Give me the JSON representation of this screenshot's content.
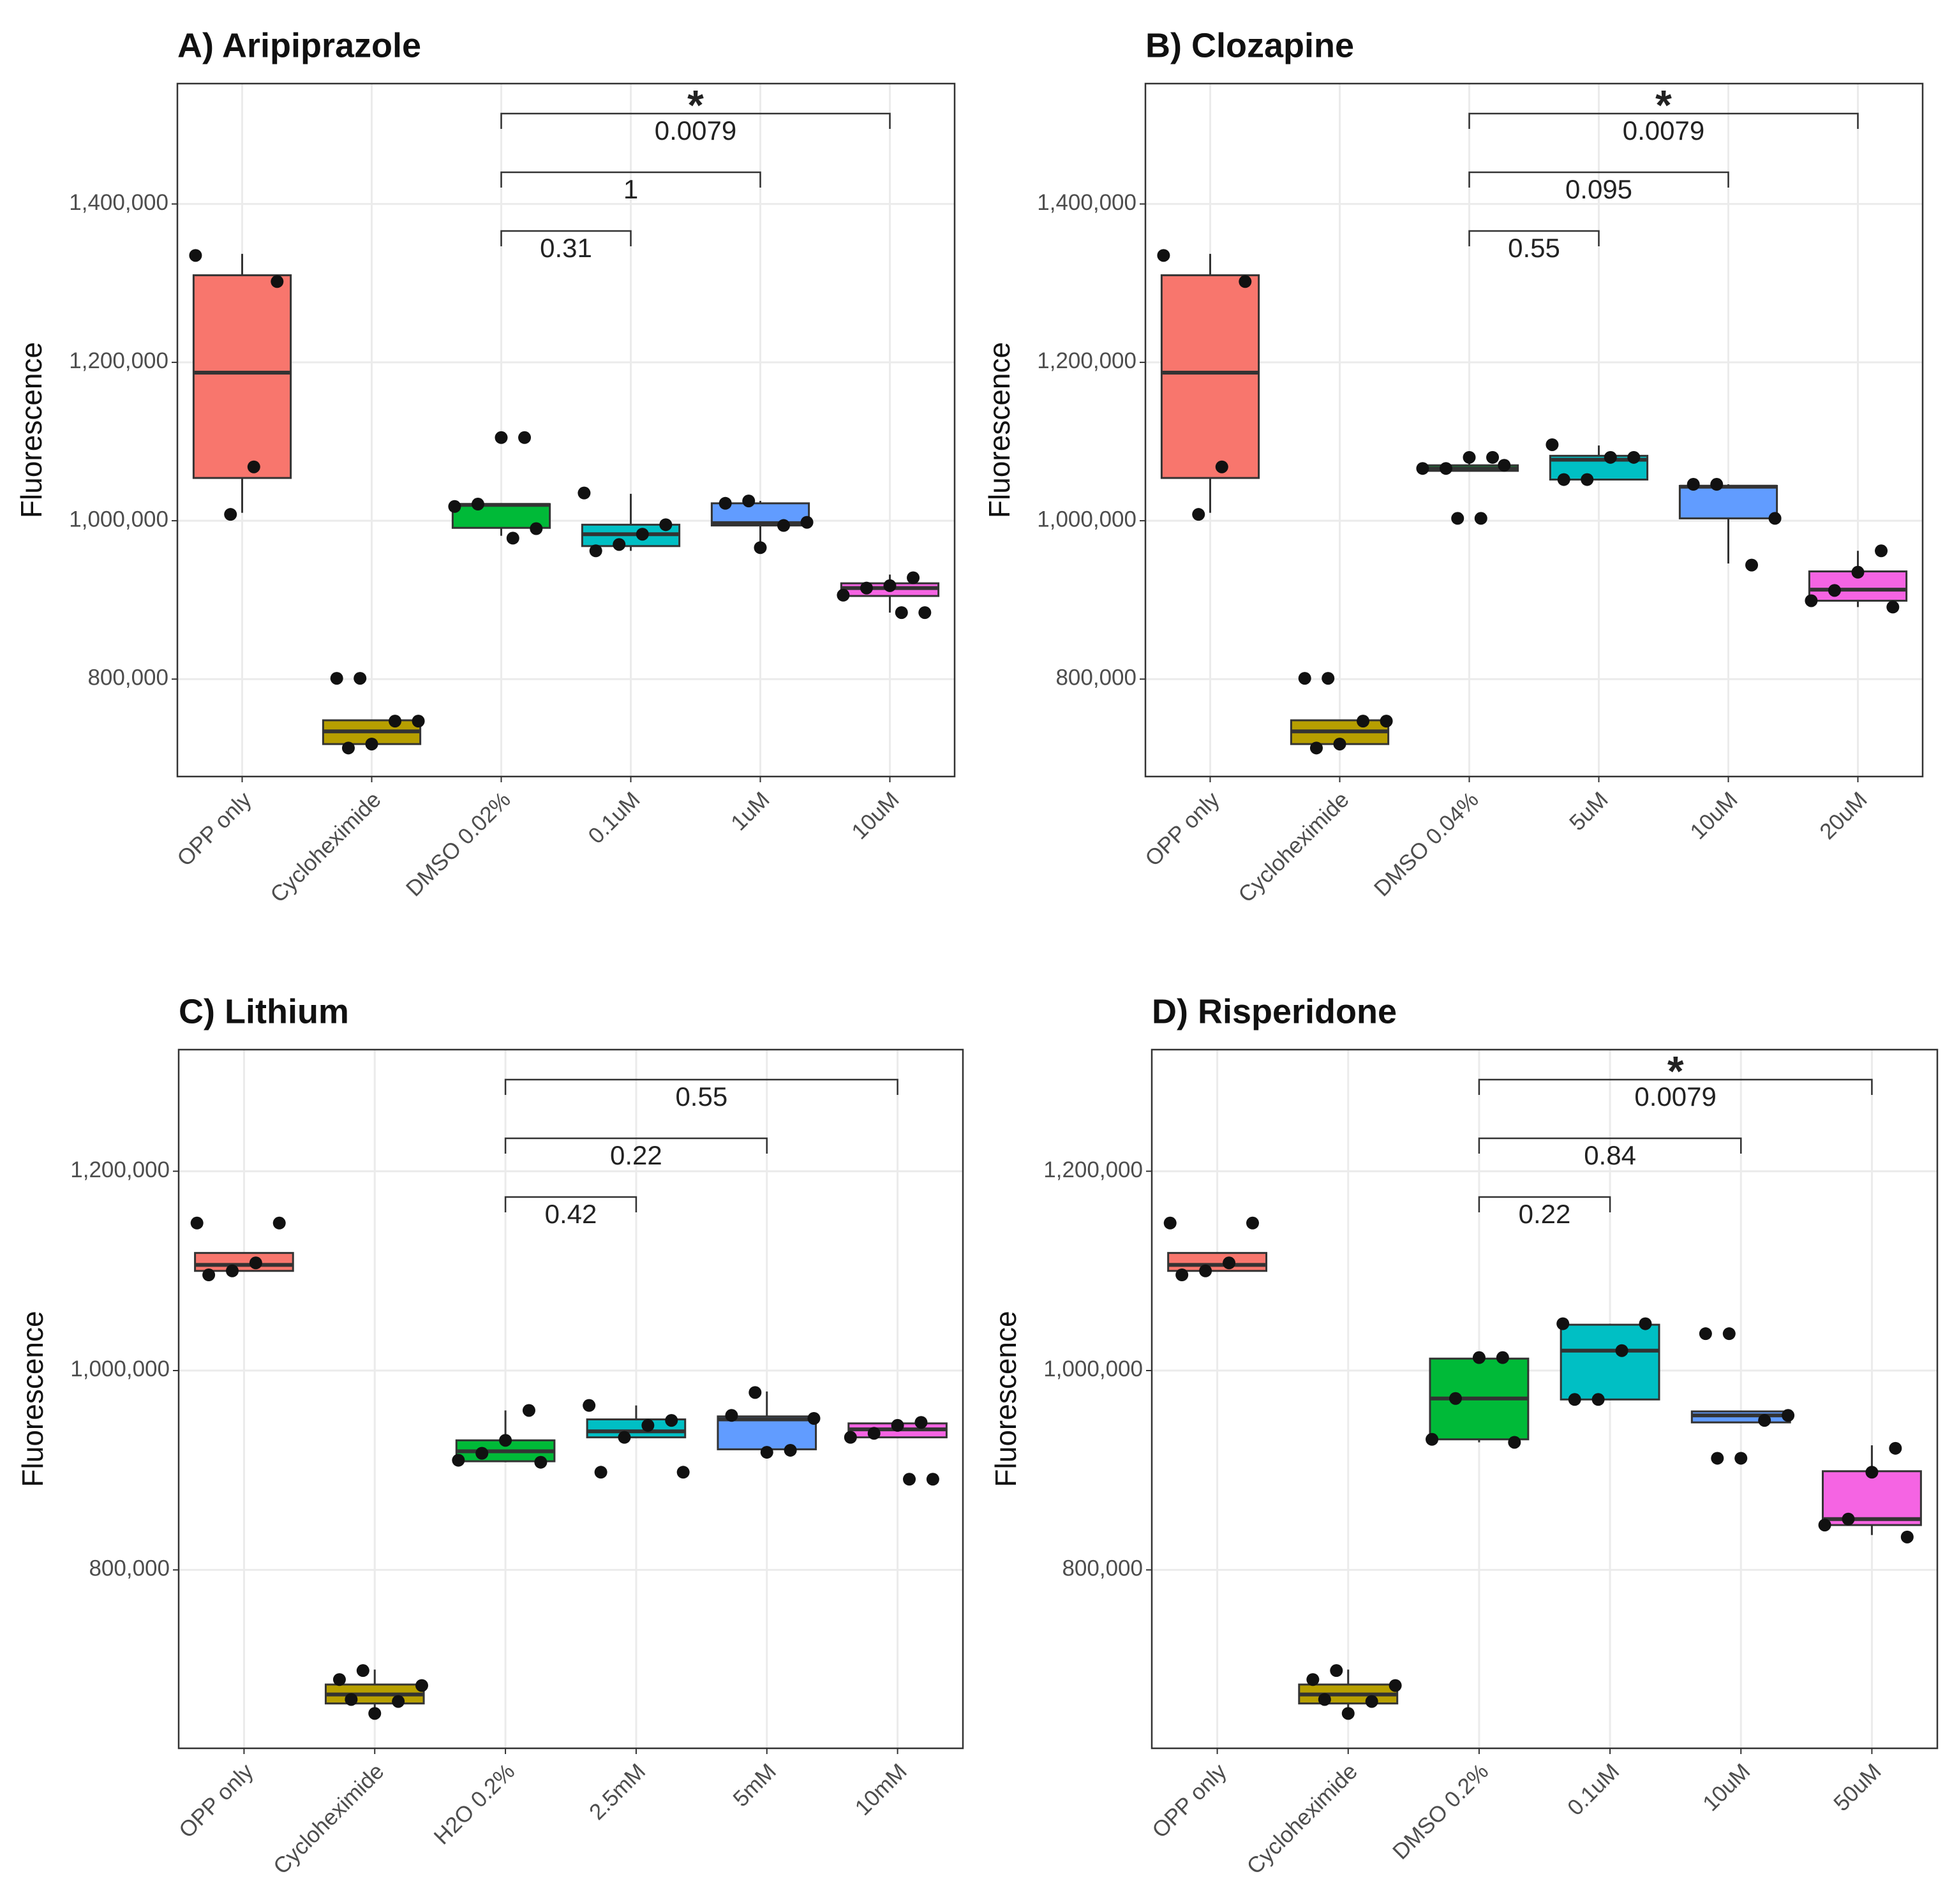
{
  "chart_data": [
    {
      "type": "box",
      "title": "A) Aripiprazole",
      "ylabel": "Fluorescence",
      "categories": [
        "OPP only",
        "Cycloheximide",
        "DMSO 0.02%",
        "0.1uM",
        "1uM",
        "10uM"
      ],
      "colors": [
        "#F8766D",
        "#B79F00",
        "#00BA38",
        "#00BFC4",
        "#619CFF",
        "#F564E3"
      ],
      "boxes": [
        {
          "low": 1010000,
          "q1": 1054000,
          "median": 1187000,
          "q3": 1310000,
          "high": 1337000
        },
        {
          "low": 710000,
          "q1": 718000,
          "median": 734000,
          "q3": 748000,
          "high": 748000
        },
        {
          "low": 981000,
          "q1": 991000,
          "median": 1020000,
          "q3": 1021000,
          "high": 1021000
        },
        {
          "low": 962000,
          "q1": 968000,
          "median": 983000,
          "q3": 995000,
          "high": 1034000
        },
        {
          "low": 967000,
          "q1": 994000,
          "median": 997000,
          "q3": 1022000,
          "high": 1025000
        },
        {
          "low": 884000,
          "q1": 905000,
          "median": 915000,
          "q3": 921000,
          "high": 932000
        }
      ],
      "points": [
        [
          1335000,
          1302000,
          1068000,
          1008000
        ],
        [
          801000,
          801000,
          747000,
          747000,
          718000,
          713000
        ],
        [
          1105000,
          1105000,
          1021000,
          1018000,
          990000,
          978000
        ],
        [
          1035000,
          995000,
          983000,
          970000,
          962000
        ],
        [
          1025000,
          1022000,
          998000,
          994000,
          966000
        ],
        [
          928000,
          918000,
          915000,
          906000,
          884000,
          884000
        ]
      ],
      "comparisons": [
        {
          "groups": [
            "DMSO 0.02%",
            "0.1uM"
          ],
          "label": "0.31"
        },
        {
          "groups": [
            "DMSO 0.02%",
            "1uM"
          ],
          "label": "1"
        },
        {
          "groups": [
            "DMSO 0.02%",
            "10uM"
          ],
          "label": "0.0079",
          "star": "*"
        }
      ],
      "ylim": [
        677000,
        1552000
      ],
      "yticks": [
        {
          "value": 800000,
          "label": "800,000"
        },
        {
          "value": 1000000,
          "label": "1,000,000"
        },
        {
          "value": 1200000,
          "label": "1,200,000"
        },
        {
          "value": 1400000,
          "label": "1,400,000"
        }
      ],
      "grid": true
    },
    {
      "type": "box",
      "title": "B) Clozapine",
      "ylabel": "Fluorescence",
      "categories": [
        "OPP only",
        "Cycloheximide",
        "DMSO 0.04%",
        "5uM",
        "10uM",
        "20uM"
      ],
      "colors": [
        "#F8766D",
        "#B79F00",
        "#00BA38",
        "#00BFC4",
        "#619CFF",
        "#F564E3"
      ],
      "boxes": [
        {
          "low": 1010000,
          "q1": 1054000,
          "median": 1187000,
          "q3": 1310000,
          "high": 1337000
        },
        {
          "low": 710000,
          "q1": 718000,
          "median": 734000,
          "q3": 748000,
          "high": 748000
        },
        {
          "low": 1063000,
          "q1": 1063000,
          "median": 1066000,
          "q3": 1070000,
          "high": 1080000
        },
        {
          "low": 1052000,
          "q1": 1052000,
          "median": 1077000,
          "q3": 1082000,
          "high": 1095000
        },
        {
          "low": 946000,
          "q1": 1003000,
          "median": 1043000,
          "q3": 1044000,
          "high": 1046000
        },
        {
          "low": 891000,
          "q1": 899000,
          "median": 913000,
          "q3": 936000,
          "high": 962000
        }
      ],
      "points": [
        [
          1335000,
          1302000,
          1068000,
          1008000
        ],
        [
          801000,
          801000,
          747000,
          747000,
          718000,
          713000
        ],
        [
          1080000,
          1080000,
          1066000,
          1066000,
          1070000,
          1003000,
          1003000
        ],
        [
          1096000,
          1080000,
          1080000,
          1052000,
          1052000
        ],
        [
          1046000,
          1046000,
          1003000,
          944000
        ],
        [
          962000,
          935000,
          912000,
          899000,
          891000
        ]
      ],
      "comparisons": [
        {
          "groups": [
            "DMSO 0.04%",
            "5uM"
          ],
          "label": "0.55"
        },
        {
          "groups": [
            "DMSO 0.04%",
            "10uM"
          ],
          "label": "0.095"
        },
        {
          "groups": [
            "DMSO 0.04%",
            "20uM"
          ],
          "label": "0.0079",
          "star": "*"
        }
      ],
      "ylim": [
        677000,
        1552000
      ],
      "yticks": [
        {
          "value": 800000,
          "label": "800,000"
        },
        {
          "value": 1000000,
          "label": "1,000,000"
        },
        {
          "value": 1200000,
          "label": "1,200,000"
        },
        {
          "value": 1400000,
          "label": "1,400,000"
        }
      ],
      "grid": true
    },
    {
      "type": "box",
      "title": "C) Lithium",
      "ylabel": "Fluorescence",
      "categories": [
        "OPP only",
        "Cycloheximide",
        "H2O 0.2%",
        "2.5mM",
        "5mM",
        "10mM"
      ],
      "colors": [
        "#F8766D",
        "#B79F00",
        "#00BA38",
        "#00BFC4",
        "#619CFF",
        "#F564E3"
      ],
      "boxes": [
        {
          "low": 1100000,
          "q1": 1100000,
          "median": 1106000,
          "q3": 1118000,
          "high": 1118000
        },
        {
          "low": 655000,
          "q1": 666000,
          "median": 675000,
          "q3": 685000,
          "high": 700000
        },
        {
          "low": 908000,
          "q1": 909000,
          "median": 919000,
          "q3": 930000,
          "high": 960000
        },
        {
          "low": 933000,
          "q1": 933000,
          "median": 939000,
          "q3": 951000,
          "high": 965000
        },
        {
          "low": 918000,
          "q1": 921000,
          "median": 951000,
          "q3": 954000,
          "high": 979000
        },
        {
          "low": 933000,
          "q1": 933000,
          "median": 941000,
          "q3": 947000,
          "high": 948000
        }
      ],
      "points": [
        [
          1148000,
          1148000,
          1108000,
          1100000,
          1096000
        ],
        [
          699000,
          690000,
          684000,
          668000,
          656000,
          670000
        ],
        [
          960000,
          930000,
          917000,
          910000,
          908000
        ],
        [
          965000,
          950000,
          945000,
          933000,
          898000,
          898000
        ],
        [
          978000,
          955000,
          952000,
          920000,
          918000
        ],
        [
          948000,
          945000,
          937000,
          933000,
          891000,
          891000
        ]
      ],
      "comparisons": [
        {
          "groups": [
            "H2O 0.2%",
            "2.5mM"
          ],
          "label": "0.42"
        },
        {
          "groups": [
            "H2O 0.2%",
            "5mM"
          ],
          "label": "0.22"
        },
        {
          "groups": [
            "H2O 0.2%",
            "10mM"
          ],
          "label": "0.55"
        }
      ],
      "ylim": [
        621000,
        1322000
      ],
      "yticks": [
        {
          "value": 800000,
          "label": "800,000"
        },
        {
          "value": 1000000,
          "label": "1,000,000"
        },
        {
          "value": 1200000,
          "label": "1,200,000"
        }
      ],
      "grid": true
    },
    {
      "type": "box",
      "title": "D) Risperidone",
      "ylabel": "Fluorescence",
      "categories": [
        "OPP only",
        "Cycloheximide",
        "DMSO 0.2%",
        "0.1uM",
        "10uM",
        "50uM"
      ],
      "colors": [
        "#F8766D",
        "#B79F00",
        "#00BA38",
        "#00BFC4",
        "#619CFF",
        "#F564E3"
      ],
      "boxes": [
        {
          "low": 1100000,
          "q1": 1100000,
          "median": 1106000,
          "q3": 1118000,
          "high": 1118000
        },
        {
          "low": 655000,
          "q1": 666000,
          "median": 675000,
          "q3": 685000,
          "high": 700000
        },
        {
          "low": 928000,
          "q1": 931000,
          "median": 972000,
          "q3": 1012000,
          "high": 1013000
        },
        {
          "low": 971000,
          "q1": 971000,
          "median": 1020000,
          "q3": 1046000,
          "high": 1047000
        },
        {
          "low": 948000,
          "q1": 948000,
          "median": 955000,
          "q3": 959000,
          "high": 959000
        },
        {
          "low": 835000,
          "q1": 845000,
          "median": 851000,
          "q3": 899000,
          "high": 925000
        }
      ],
      "points": [
        [
          1148000,
          1148000,
          1108000,
          1100000,
          1096000
        ],
        [
          699000,
          690000,
          684000,
          668000,
          656000,
          670000
        ],
        [
          1013000,
          1013000,
          972000,
          931000,
          928000
        ],
        [
          1047000,
          1047000,
          1020000,
          971000,
          971000
        ],
        [
          1037000,
          1037000,
          955000,
          950000,
          912000,
          912000
        ],
        [
          922000,
          898000,
          851000,
          845000,
          833000
        ]
      ],
      "comparisons": [
        {
          "groups": [
            "DMSO 0.2%",
            "0.1uM"
          ],
          "label": "0.22"
        },
        {
          "groups": [
            "DMSO 0.2%",
            "10uM"
          ],
          "label": "0.84"
        },
        {
          "groups": [
            "DMSO 0.2%",
            "50uM"
          ],
          "label": "0.0079",
          "star": "*"
        }
      ],
      "ylim": [
        621000,
        1322000
      ],
      "yticks": [
        {
          "value": 800000,
          "label": "800,000"
        },
        {
          "value": 1000000,
          "label": "1,000,000"
        },
        {
          "value": 1200000,
          "label": "1,200,000"
        }
      ],
      "grid": true
    }
  ]
}
